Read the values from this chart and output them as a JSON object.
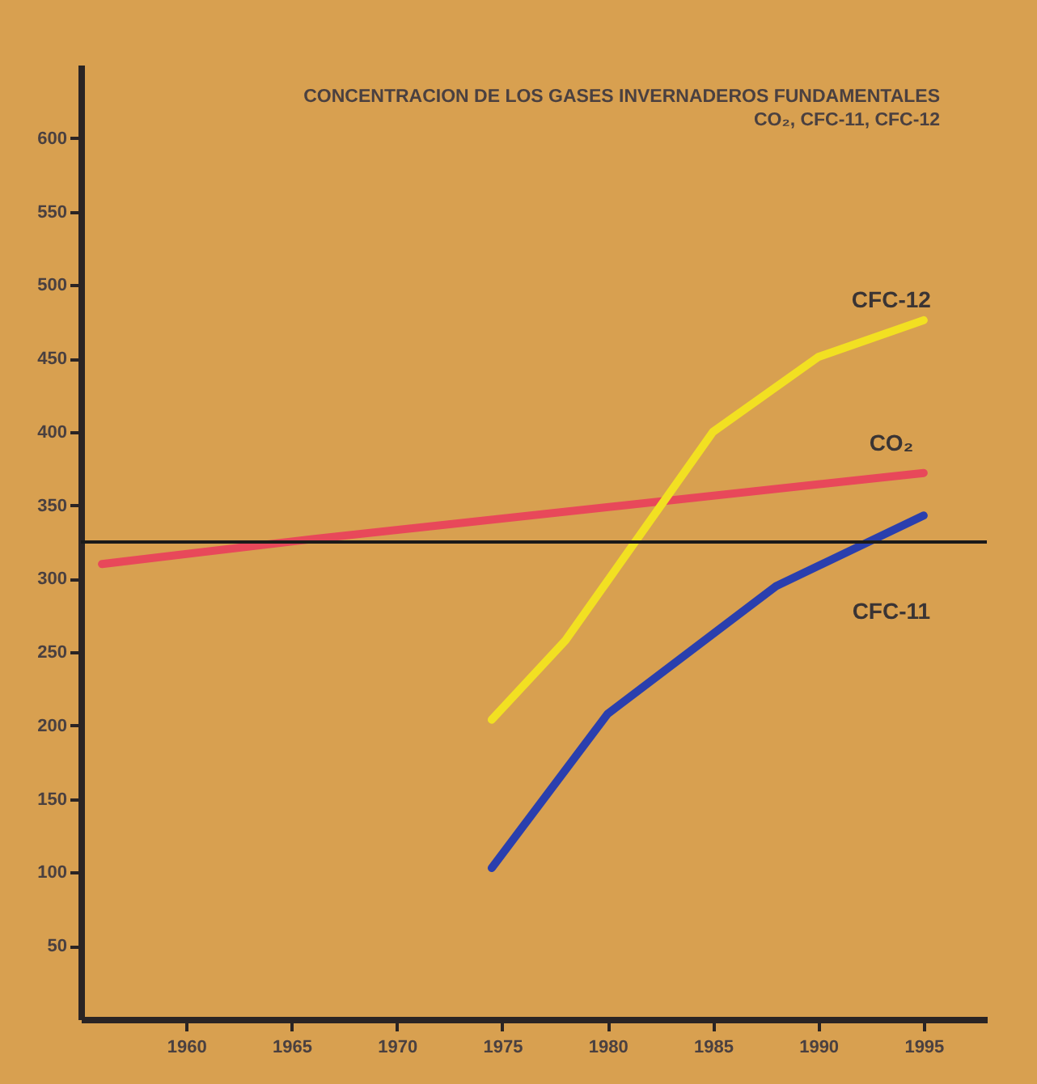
{
  "chart_data": {
    "type": "line",
    "title": "CONCENTRACION DE LOS GASES INVERNADEROS FUNDAMENTALES",
    "subtitle": "CO₂, CFC-11, CFC-12",
    "xlim": [
      1955,
      1998
    ],
    "xticks": [
      1960,
      1965,
      1970,
      1975,
      1980,
      1985,
      1990,
      1995
    ],
    "ylim": [
      0,
      650
    ],
    "yticks": [
      50,
      100,
      150,
      200,
      250,
      300,
      350,
      400,
      450,
      500,
      550,
      600
    ],
    "grid": false,
    "line_style": "solid",
    "ref_lines": [
      {
        "axis": "y",
        "value": 325,
        "color": "#1a1a1a"
      }
    ],
    "series": [
      {
        "name": "CO₂",
        "color": "#e8485a",
        "x": [
          1956,
          1966,
          1995
        ],
        "values": [
          310,
          327,
          372
        ]
      },
      {
        "name": "CFC-11",
        "color": "#2a3fae",
        "x": [
          1974.5,
          1980,
          1988,
          1995
        ],
        "values": [
          103,
          208,
          295,
          343
        ]
      },
      {
        "name": "CFC-12",
        "color": "#f2e022",
        "x": [
          1974.5,
          1978,
          1985,
          1990,
          1995
        ],
        "values": [
          204,
          258,
          400,
          451,
          476
        ]
      }
    ]
  }
}
